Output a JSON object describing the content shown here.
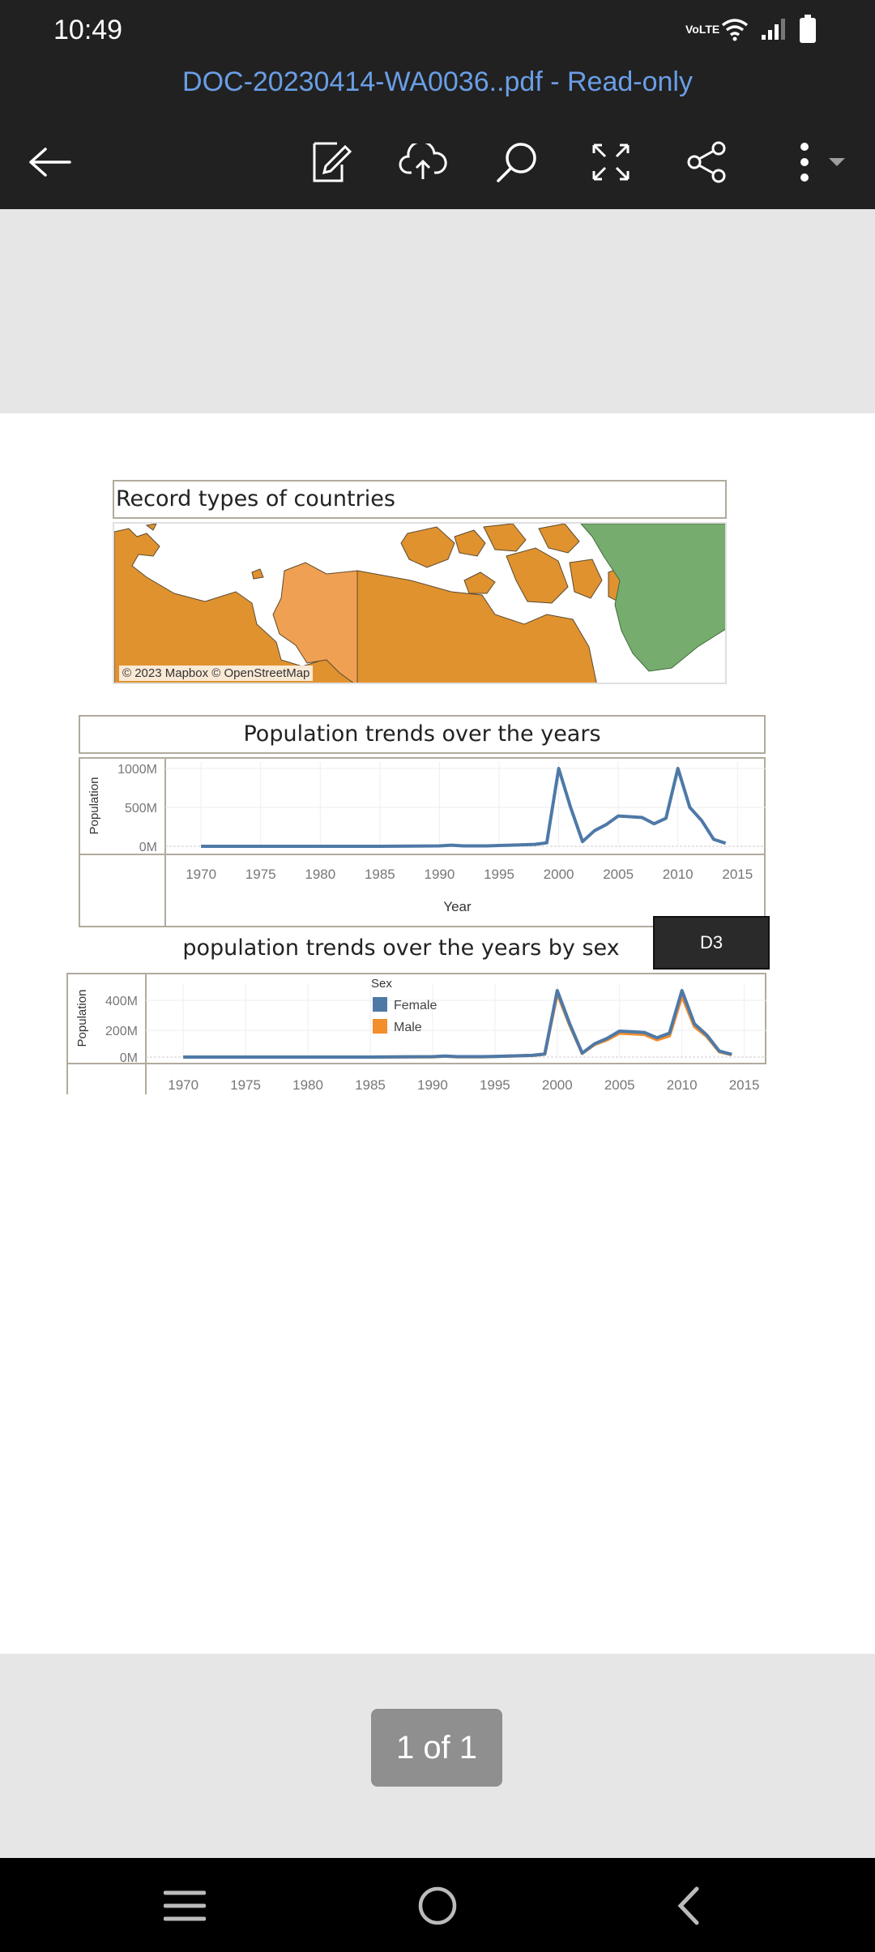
{
  "status": {
    "time": "10:49",
    "network": "VoLTE"
  },
  "app_bar": {
    "title": "DOC-20230414-WA0036..pdf - Read-only",
    "icons": [
      "back-arrow-icon",
      "edit-icon",
      "cloud-upload-icon",
      "search-icon",
      "fullscreen-icon",
      "share-icon",
      "more-vert-icon"
    ]
  },
  "document": {
    "map": {
      "title": "Record types of countries",
      "credit": "© 2023 Mapbox © OpenStreetMap"
    },
    "chart1": {
      "title": "Population trends over the years"
    },
    "chart2": {
      "title": "population trends over the years by sex",
      "badge": "D3"
    }
  },
  "footer": {
    "page_indicator": "1 of 1"
  },
  "chart_data": [
    {
      "type": "line",
      "title": "Population trends over the years",
      "xlabel": "Year",
      "ylabel": "Population",
      "xlim": [
        1967,
        2016
      ],
      "ylim": [
        0,
        1000
      ],
      "x_ticks": [
        "1970",
        "1975",
        "1980",
        "1985",
        "1990",
        "1995",
        "2000",
        "2005",
        "2010",
        "2015"
      ],
      "y_ticks": [
        "1000M",
        "500M",
        "0M"
      ],
      "color": "#4e79a7",
      "series": [
        {
          "x": [
            1970,
            1975,
            1980,
            1985,
            1990,
            1991,
            1992,
            1993,
            1994,
            1995,
            1996,
            1997,
            1998,
            1999,
            2000,
            2001,
            2002,
            2003,
            2004,
            2005,
            2006,
            2007,
            2008,
            2009,
            2010,
            2011,
            2012,
            2013,
            2014
          ],
          "y": [
            0,
            0,
            0,
            0,
            5,
            15,
            5,
            5,
            5,
            10,
            15,
            20,
            25,
            45,
            1000,
            500,
            60,
            200,
            280,
            390,
            380,
            370,
            290,
            360,
            1000,
            500,
            330,
            90,
            40
          ]
        }
      ]
    },
    {
      "type": "line",
      "title": "population trends over the years by sex",
      "ylabel": "Population",
      "xlim": [
        1967,
        2016
      ],
      "ylim": [
        0,
        500
      ],
      "x_ticks": [
        "1970",
        "1975",
        "1980",
        "1985",
        "1990",
        "1995",
        "2000",
        "2005",
        "2010",
        "2015"
      ],
      "y_ticks": [
        "400M",
        "200M",
        "0M"
      ],
      "legend": {
        "title": "Sex",
        "entries": [
          "Female",
          "Male"
        ],
        "placement": "top-center"
      },
      "series": [
        {
          "name": "Female",
          "color": "#4e79a7",
          "x": [
            1970,
            1975,
            1980,
            1985,
            1990,
            1991,
            1992,
            1993,
            1994,
            1995,
            1996,
            1997,
            1998,
            1999,
            2000,
            2001,
            2002,
            2003,
            2004,
            2005,
            2006,
            2007,
            2008,
            2009,
            2010,
            2011,
            2012,
            2013,
            2014
          ],
          "y": [
            0,
            0,
            0,
            0,
            3,
            8,
            3,
            3,
            3,
            5,
            8,
            10,
            13,
            23,
            500,
            250,
            30,
            100,
            140,
            195,
            190,
            185,
            145,
            180,
            500,
            250,
            165,
            45,
            20
          ]
        },
        {
          "name": "Male",
          "color": "#f28e2b",
          "x": [
            1970,
            1975,
            1980,
            1985,
            1990,
            1991,
            1992,
            1993,
            1994,
            1995,
            1996,
            1997,
            1998,
            1999,
            2000,
            2001,
            2002,
            2003,
            2004,
            2005,
            2006,
            2007,
            2008,
            2009,
            2010,
            2011,
            2012,
            2013,
            2014
          ],
          "y": [
            0,
            0,
            0,
            0,
            2,
            7,
            2,
            2,
            2,
            5,
            7,
            10,
            12,
            22,
            480,
            240,
            28,
            95,
            130,
            180,
            175,
            170,
            130,
            160,
            460,
            230,
            155,
            40,
            18
          ]
        }
      ]
    }
  ]
}
